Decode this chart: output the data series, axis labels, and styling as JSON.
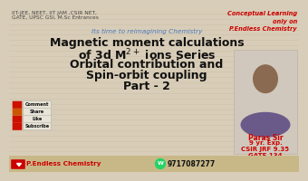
{
  "bg_color": "#d8cdb8",
  "top_left_text1": "IIT-JEE, NEET, IIT JAM ,CSIR NET,",
  "top_left_text2": "GATE, UPSC GSI, M.Sc Entrances",
  "top_right_text": "Conceptual Learning\nonly on\nP.Endless Chemistry",
  "tagline": "Its time to reimagining Chemistry",
  "main_line1": "Magnetic moment calculations",
  "main_line2_a": "of 3d M",
  "main_superscript": "2+",
  "main_line2_b": " ions Series",
  "main_line3": "Orbital contribution and",
  "main_line4": "Spin-orbit coupling",
  "main_line5": "Part - 2",
  "bottom_logo_text": "P.Endless Chemistry",
  "bottom_phone": "9717087277",
  "right_name": "Paras Sir",
  "right_exp": "9 yr. Exp.",
  "right_csir": "CSIR JRF 9.35",
  "right_gate": "GATE 134",
  "main_text_color": "#111111",
  "red_color": "#cc0000",
  "tagline_color": "#4a7abf",
  "top_left_color": "#444444",
  "button_labels": [
    "Subscribe",
    "Like",
    "Share",
    "Comment"
  ],
  "button_icon_colors": [
    "#cc1100",
    "#cc1100",
    "#cc5500",
    "#cc1100"
  ],
  "photo_bg": "#d0c8bc",
  "bottom_bar_color": "#c8b888",
  "wood_line_color": "#c0aa88"
}
